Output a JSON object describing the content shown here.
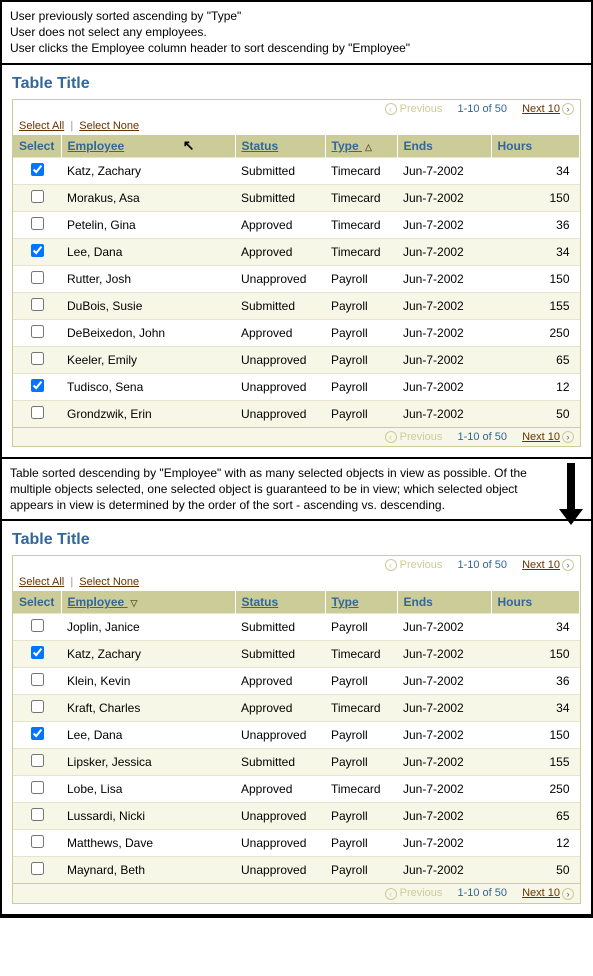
{
  "captions": {
    "top_line1": "User previously sorted ascending by \"Type\"",
    "top_line2": "User does not select any employees.",
    "top_line3": "User clicks the Employee column header to sort descending by \"Employee\"",
    "mid": "Table sorted descending by \"Employee\" with as many selected objects in view as possible. Of the multiple objects selected, one selected object is guaranteed to be in view; which selected object appears in view is determined by the order of the sort - ascending vs. descending."
  },
  "shared": {
    "table_title": "Table Title",
    "select_all": "Select All",
    "select_none": "Select None",
    "prev_label": "Previous",
    "next_label": "Next 10",
    "range_label": "1-10 of 50",
    "headers": {
      "select": "Select",
      "employee": "Employee",
      "status": "Status",
      "type": "Type",
      "ends": "Ends",
      "hours": "Hours"
    }
  },
  "table1": {
    "sort_indicator_col": "type",
    "sort_indicator_glyph": "△",
    "cursor_on_employee": true,
    "rows": [
      {
        "checked": true,
        "employee": "Katz, Zachary",
        "status": "Submitted",
        "type": "Timecard",
        "ends": "Jun-7-2002",
        "hours": "34"
      },
      {
        "checked": false,
        "employee": "Morakus, Asa",
        "status": "Submitted",
        "type": "Timecard",
        "ends": "Jun-7-2002",
        "hours": "150"
      },
      {
        "checked": false,
        "employee": "Petelin, Gina",
        "status": "Approved",
        "type": "Timecard",
        "ends": "Jun-7-2002",
        "hours": "36"
      },
      {
        "checked": true,
        "employee": "Lee, Dana",
        "status": "Approved",
        "type": "Timecard",
        "ends": "Jun-7-2002",
        "hours": "34"
      },
      {
        "checked": false,
        "employee": "Rutter, Josh",
        "status": "Unapproved",
        "type": "Payroll",
        "ends": "Jun-7-2002",
        "hours": "150"
      },
      {
        "checked": false,
        "employee": "DuBois, Susie",
        "status": "Submitted",
        "type": "Payroll",
        "ends": "Jun-7-2002",
        "hours": "155"
      },
      {
        "checked": false,
        "employee": "DeBeixedon, John",
        "status": "Approved",
        "type": "Payroll",
        "ends": "Jun-7-2002",
        "hours": "250"
      },
      {
        "checked": false,
        "employee": "Keeler, Emily",
        "status": "Unapproved",
        "type": "Payroll",
        "ends": "Jun-7-2002",
        "hours": "65"
      },
      {
        "checked": true,
        "employee": "Tudisco, Sena",
        "status": "Unapproved",
        "type": "Payroll",
        "ends": "Jun-7-2002",
        "hours": "12"
      },
      {
        "checked": false,
        "employee": "Grondzwik, Erin",
        "status": "Unapproved",
        "type": "Payroll",
        "ends": "Jun-7-2002",
        "hours": "50"
      }
    ]
  },
  "table2": {
    "sort_indicator_col": "employee",
    "sort_indicator_glyph": "▽",
    "cursor_on_employee": false,
    "rows": [
      {
        "checked": false,
        "employee": "Joplin, Janice",
        "status": "Submitted",
        "type": "Payroll",
        "ends": "Jun-7-2002",
        "hours": "34"
      },
      {
        "checked": true,
        "employee": "Katz, Zachary",
        "status": "Submitted",
        "type": "Timecard",
        "ends": "Jun-7-2002",
        "hours": "150"
      },
      {
        "checked": false,
        "employee": "Klein, Kevin",
        "status": "Approved",
        "type": "Payroll",
        "ends": "Jun-7-2002",
        "hours": "36"
      },
      {
        "checked": false,
        "employee": "Kraft, Charles",
        "status": "Approved",
        "type": "Timecard",
        "ends": "Jun-7-2002",
        "hours": "34"
      },
      {
        "checked": true,
        "employee": "Lee, Dana",
        "status": "Unapproved",
        "type": "Payroll",
        "ends": "Jun-7-2002",
        "hours": "150"
      },
      {
        "checked": false,
        "employee": "Lipsker, Jessica",
        "status": "Submitted",
        "type": "Payroll",
        "ends": "Jun-7-2002",
        "hours": "155"
      },
      {
        "checked": false,
        "employee": "Lobe, Lisa",
        "status": "Approved",
        "type": "Timecard",
        "ends": "Jun-7-2002",
        "hours": "250"
      },
      {
        "checked": false,
        "employee": "Lussardi, Nicki",
        "status": "Unapproved",
        "type": "Payroll",
        "ends": "Jun-7-2002",
        "hours": "65"
      },
      {
        "checked": false,
        "employee": "Matthews, Dave",
        "status": "Unapproved",
        "type": "Payroll",
        "ends": "Jun-7-2002",
        "hours": "12"
      },
      {
        "checked": false,
        "employee": "Maynard, Beth",
        "status": "Unapproved",
        "type": "Payroll",
        "ends": "Jun-7-2002",
        "hours": "50"
      }
    ]
  },
  "colors": {
    "header_bg": "#cccc99",
    "header_text": "#336699",
    "link_brown": "#663300",
    "alt_row_bg": "#f7f7e7",
    "border": "#cccc99"
  }
}
